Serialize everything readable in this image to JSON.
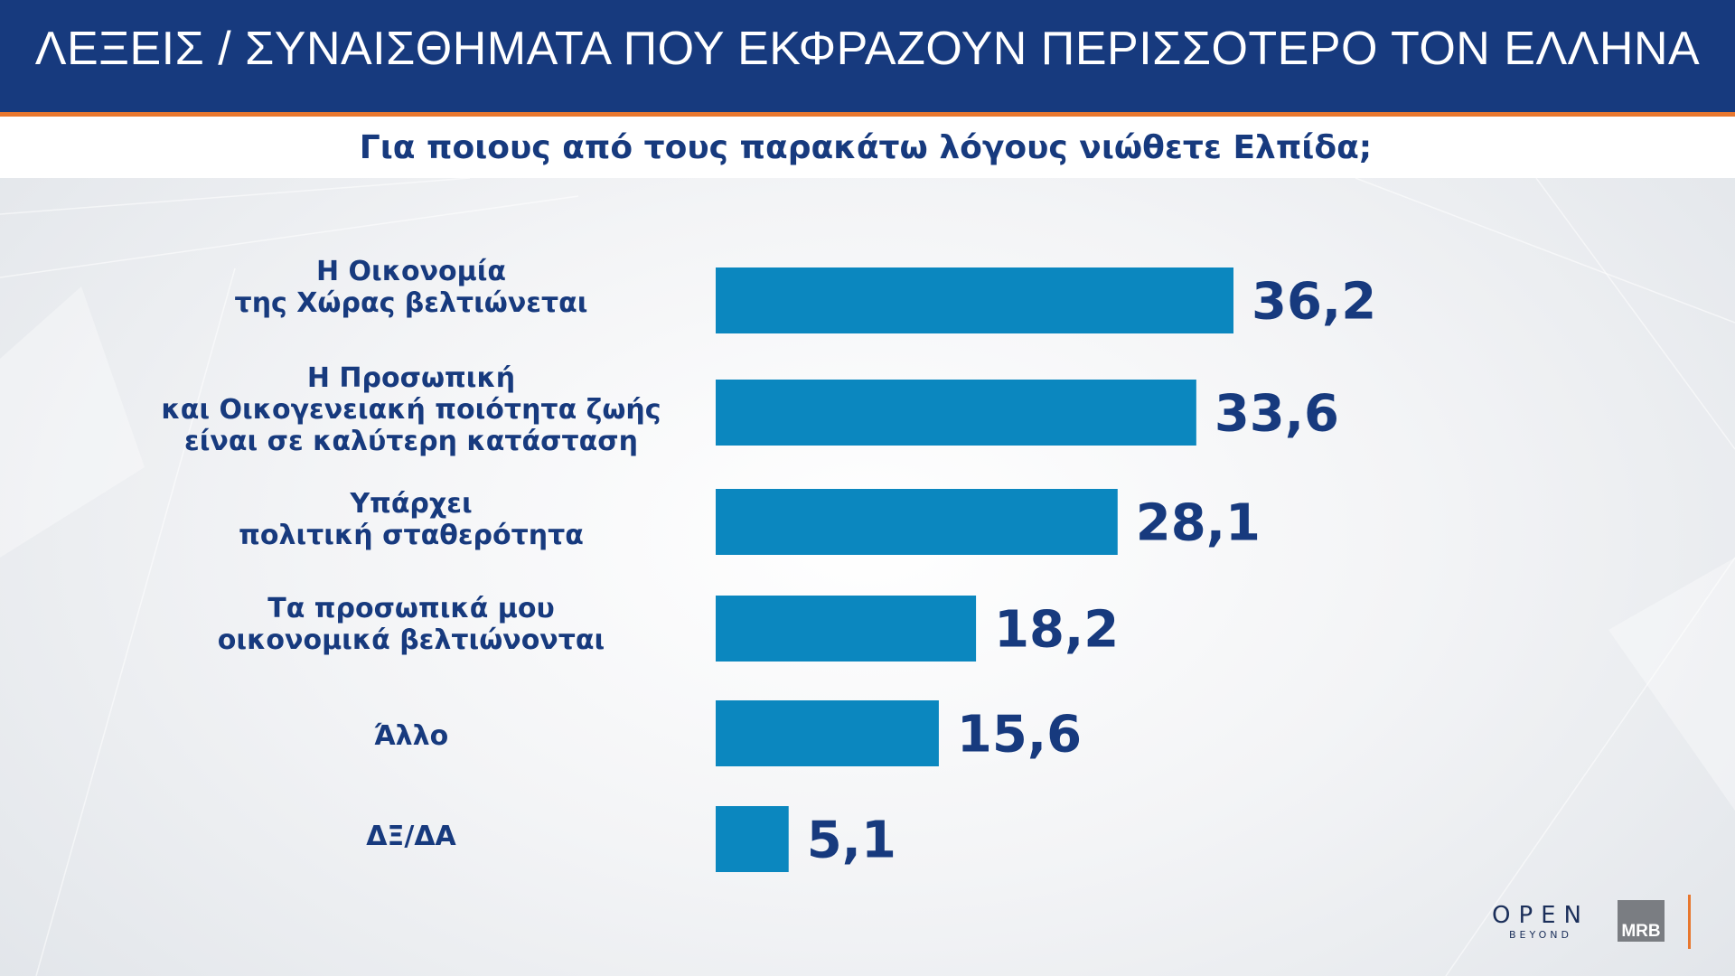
{
  "header": {
    "title": "ΛΕΞΕΙΣ / ΣΥΝΑΙΣΘΗΜΑΤΑ ΠΟΥ ΕΚΦΡΑΖΟΥΝ ΠΕΡΙΣΣΟΤΕΡΟ ΤΟΝ ΕΛΛΗΝΑ"
  },
  "subtitle": "Για ποιους από τους παρακάτω λόγους νιώθετε Ελπίδα;",
  "chart_data": {
    "type": "bar",
    "orientation": "horizontal",
    "title": "ΛΕΞΕΙΣ / ΣΥΝΑΙΣΘΗΜΑΤΑ ΠΟΥ ΕΚΦΡΑΖΟΥΝ ΠΕΡΙΣΣΟΤΕΡΟ ΤΟΝ ΕΛΛΗΝΑ",
    "subtitle": "Για ποιους από τους παρακάτω λόγους νιώθετε Ελπίδα;",
    "categories": [
      "Η Οικονομία\nτης Χώρας βελτιώνεται",
      "Η Προσωπική\nκαι Οικογενειακή ποιότητα ζωής\nείναι σε καλύτερη κατάσταση",
      "Υπάρχει\nπολιτική σταθερότητα",
      "Τα προσωπικά μου\nοικονομικά βελτιώνονται",
      "Άλλο",
      "ΔΞ/ΔΑ"
    ],
    "values": [
      36.2,
      33.6,
      28.1,
      18.2,
      15.6,
      5.1
    ],
    "value_labels": [
      "36,2",
      "33,6",
      "28,1",
      "18,2",
      "15,6",
      "5,1"
    ],
    "xlim": [
      0,
      36.2
    ],
    "grid": false,
    "bar_color": "#0b87bf",
    "label_color": "#173a7e"
  },
  "logos": {
    "open_word": "OPEN",
    "open_sub": "BEYOND",
    "mrb": "MRB"
  },
  "colors": {
    "header": "#173a7e",
    "accent": "#e8772e",
    "bar": "#0b87bf"
  }
}
